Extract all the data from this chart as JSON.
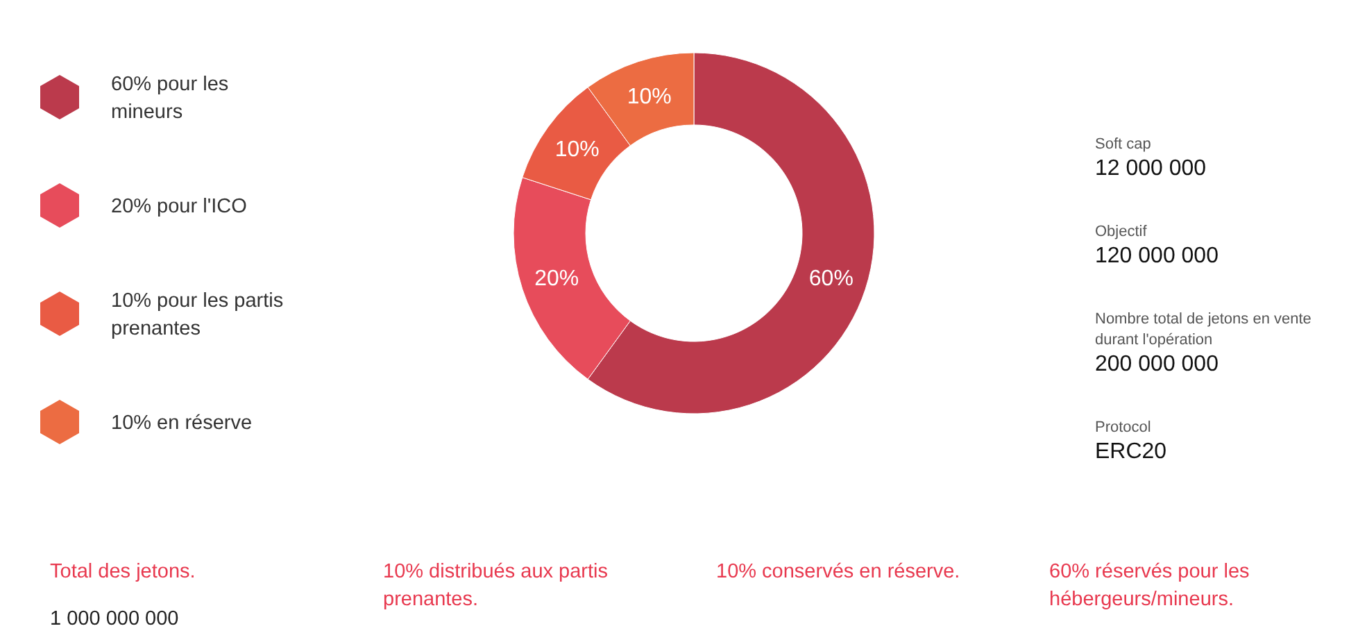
{
  "chart_data": [
    {
      "type": "donut",
      "categories": [
        "60% pour les mineurs",
        "20% pour l'ICO",
        "10% pour les partis prenantes",
        "10% en réserve"
      ],
      "values": [
        60,
        20,
        10,
        10
      ],
      "colors": [
        "#bb3a4c",
        "#e74c5b",
        "#e95b44",
        "#ec6c42"
      ],
      "value_labels": [
        "60%",
        "20%",
        "10%",
        "10%"
      ],
      "legend": "left",
      "annotations": [
        "Total des jetons.",
        "1 000 000 000",
        "10% distribués aux partis prenantes.",
        "10% conservés en réserve.",
        "60% réservés pour les hébergeurs/mineurs."
      ]
    },
    {
      "type": "other",
      "annotations": [
        "Soft cap",
        "12 000 000",
        "Objectif",
        "120 000 000",
        "Nombre total de jetons en vente durant l'opération",
        "200 000 000",
        "Protocol",
        "ERC20"
      ]
    }
  ]
}
